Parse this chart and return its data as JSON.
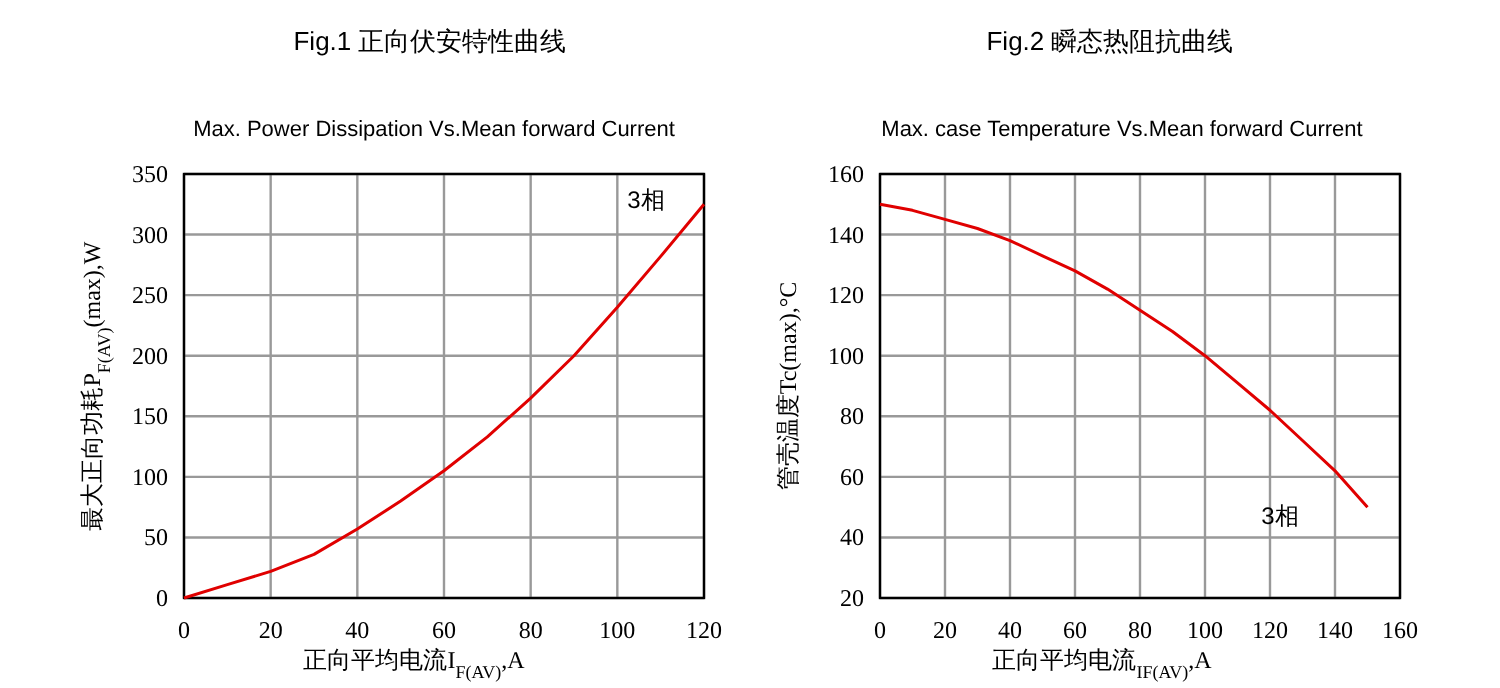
{
  "chart_data": [
    {
      "type": "line",
      "title": "Fig.1 正向伏安特性曲线",
      "subtitle": "Max. Power Dissipation Vs.Mean forward Current",
      "xlabel": "正向平均电流I$_{F(AV)}$,A",
      "ylabel": "最大正向功耗P$_{F(AV)}$(max),W",
      "x": [
        0,
        10,
        20,
        30,
        40,
        50,
        60,
        70,
        80,
        90,
        100,
        110,
        120
      ],
      "series": [
        {
          "color": "#e00000",
          "values": [
            0,
            11,
            22,
            36,
            57,
            80,
            105,
            133,
            165,
            200,
            240,
            282,
            325
          ]
        }
      ],
      "xlim": [
        0,
        120
      ],
      "xticks": [
        0,
        20,
        40,
        60,
        80,
        100,
        120
      ],
      "ylim": [
        0,
        350
      ],
      "yticks": [
        0,
        50,
        100,
        150,
        200,
        250,
        300,
        350
      ],
      "grid": true,
      "annotations": [
        "3相"
      ]
    },
    {
      "type": "line",
      "title": "Fig.2 瞬态热阻抗曲线",
      "subtitle": "Max. case Temperature Vs.Mean forward Current",
      "xlabel": "正向平均电流$_{IF(AV)}$,A",
      "ylabel": "管壳温度Tc(max),°C",
      "x": [
        0,
        10,
        20,
        30,
        40,
        50,
        60,
        70,
        80,
        90,
        100,
        110,
        120,
        130,
        140,
        150
      ],
      "series": [
        {
          "color": "#e00000",
          "values": [
            150,
            148,
            145,
            142,
            138,
            133,
            128,
            122,
            115,
            108,
            100,
            91,
            82,
            72,
            62,
            50
          ]
        }
      ],
      "xlim": [
        0,
        160
      ],
      "xticks": [
        0,
        20,
        40,
        60,
        80,
        100,
        120,
        140,
        160
      ],
      "ylim": [
        20,
        160
      ],
      "yticks": [
        20,
        40,
        60,
        80,
        100,
        120,
        140,
        160
      ],
      "grid": true,
      "annotations": [
        "3相"
      ]
    }
  ]
}
